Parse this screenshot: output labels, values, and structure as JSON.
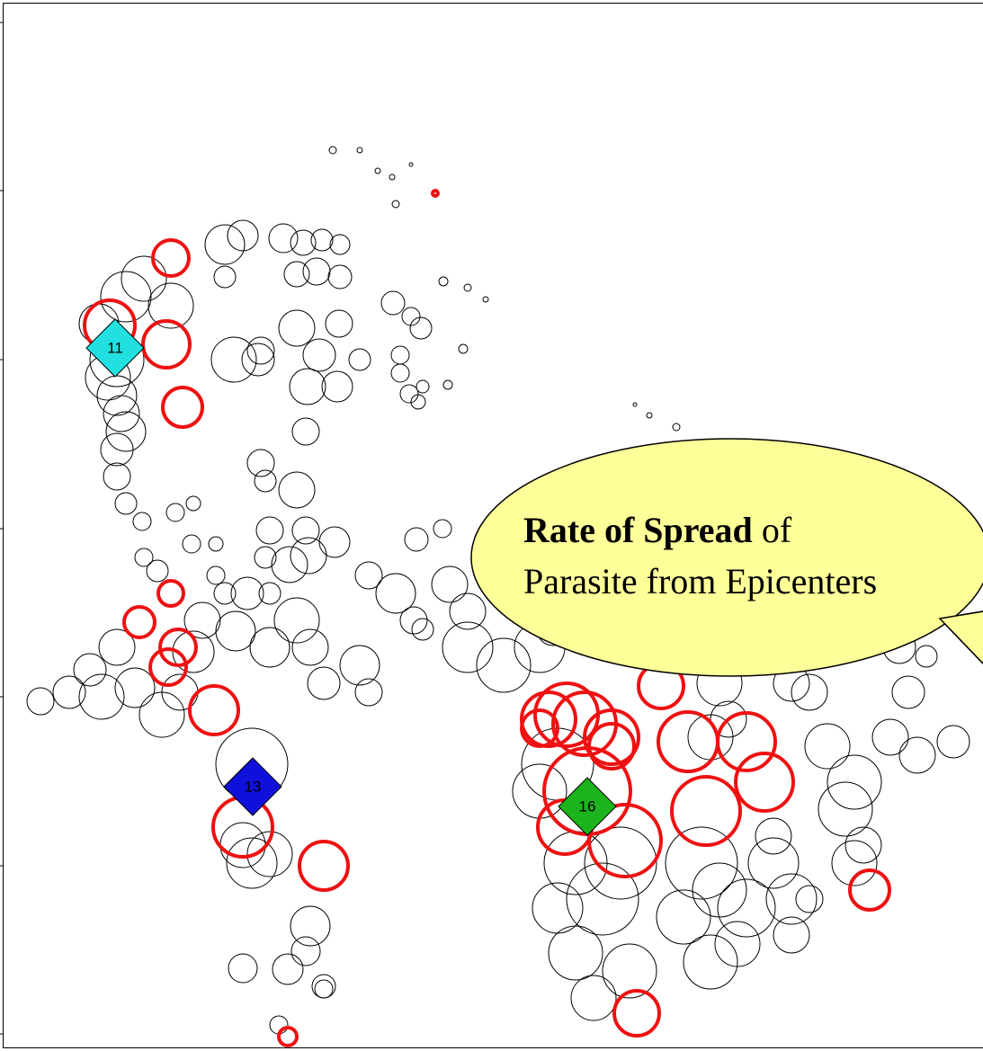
{
  "chart_data": {
    "type": "scatter",
    "xlim": [
      0,
      1093
    ],
    "ylim": [
      1169,
      0
    ],
    "yticks": [
      25,
      212,
      400,
      588,
      775,
      963,
      1150
    ],
    "series": [
      {
        "color": "#000000",
        "x": [
          370,
          400,
          420,
          436,
          457,
          440,
          493,
          520,
          540,
          515,
          498,
          752,
          722,
          706,
          250,
          270,
          315,
          337,
          358,
          378,
          330,
          352,
          378,
          250,
          160,
          140,
          190,
          110,
          130,
          120,
          130,
          135,
          140,
          130,
          130,
          140,
          158,
          160,
          175,
          195,
          215,
          213,
          240,
          250,
          240,
          290,
          295,
          340,
          330,
          300,
          295,
          340,
          372,
          343,
          322,
          275,
          300,
          262,
          225,
          215,
          200,
          180,
          130,
          150,
          100,
          77,
          45,
          113,
          300,
          330,
          345,
          360,
          400,
          410,
          410,
          440,
          460,
          470,
          463,
          492,
          500,
          520,
          520,
          560,
          600,
          615,
          287,
          330,
          377,
          355,
          400,
          342,
          375,
          437,
          457,
          468,
          445,
          445,
          455,
          470,
          465,
          290,
          260,
          280,
          270,
          300,
          280,
          345,
          340,
          270,
          320,
          360,
          360,
          310,
          620,
          600,
          640,
          670,
          690,
          620,
          640,
          660,
          700,
          760,
          780,
          800,
          820,
          790,
          830,
          860,
          880,
          880,
          900,
          800,
          790,
          810,
          900,
          920,
          950,
          940,
          990,
          1020,
          1060,
          1010,
          1000,
          1030,
          910,
          880,
          860,
          950,
          960
        ],
        "y": [
          167,
          167,
          190,
          197,
          183,
          227,
          313,
          320,
          333,
          388,
          428,
          475,
          462,
          450,
          272,
          262,
          265,
          270,
          267,
          272,
          305,
          302,
          308,
          308,
          310,
          330,
          340,
          360,
          400,
          420,
          440,
          460,
          480,
          500,
          530,
          560,
          580,
          620,
          635,
          570,
          560,
          605,
          605,
          660,
          640,
          515,
          535,
          480,
          545,
          590,
          620,
          590,
          603,
          618,
          628,
          660,
          660,
          702,
          690,
          725,
          770,
          795,
          720,
          765,
          745,
          770,
          780,
          775,
          720,
          690,
          720,
          760,
          740,
          770,
          640,
          660,
          690,
          700,
          600,
          588,
          650,
          680,
          720,
          740,
          720,
          700,
          400,
          365,
          360,
          395,
          400,
          430,
          430,
          337,
          352,
          365,
          395,
          415,
          438,
          430,
          447,
          390,
          400,
          850,
          940,
          950,
          960,
          1030,
          1058,
          1077,
          1078,
          1100,
          1097,
          1140,
          850,
          880,
          960,
          1000,
          960,
          1010,
          1060,
          1110,
          1080,
          1020,
          960,
          990,
          1050,
          1070,
          1010,
          960,
          1000,
          1040,
          1000,
          760,
          820,
          800,
          770,
          830,
          870,
          900,
          820,
          840,
          825,
          770,
          720,
          730,
          710,
          760,
          930,
          960,
          940
        ],
        "sizes": [
          4,
          3,
          3,
          3,
          2,
          4,
          5,
          4,
          3,
          5,
          5,
          4,
          3,
          2,
          22,
          17,
          16,
          14,
          12,
          11,
          14,
          15,
          13,
          12,
          25,
          28,
          25,
          22,
          30,
          25,
          22,
          20,
          22,
          18,
          15,
          12,
          10,
          10,
          12,
          10,
          8,
          10,
          8,
          12,
          10,
          15,
          12,
          15,
          20,
          15,
          12,
          15,
          17,
          20,
          20,
          18,
          12,
          22,
          20,
          23,
          20,
          25,
          20,
          22,
          18,
          18,
          15,
          25,
          22,
          25,
          20,
          18,
          22,
          15,
          15,
          22,
          15,
          12,
          13,
          10,
          20,
          20,
          28,
          30,
          28,
          18,
          18,
          20,
          15,
          18,
          12,
          20,
          17,
          13,
          10,
          12,
          10,
          10,
          10,
          7,
          8,
          15,
          25,
          40,
          25,
          25,
          28,
          22,
          16,
          16,
          17,
          10,
          13,
          10,
          40,
          30,
          35,
          40,
          40,
          28,
          30,
          25,
          30,
          30,
          40,
          30,
          25,
          30,
          32,
          28,
          28,
          20,
          15,
          25,
          25,
          20,
          20,
          25,
          30,
          30,
          20,
          20,
          18,
          18,
          18,
          12,
          12,
          20,
          20,
          25,
          20
        ]
      },
      {
        "color": "#ee1111",
        "x": [
          484,
          190,
          122,
          185,
          203,
          190,
          155,
          198,
          187,
          238,
          270,
          360,
          320,
          708,
          967,
          862,
          630,
          610,
          650,
          680,
          735,
          765,
          830,
          850,
          785,
          653,
          628,
          695,
          680,
          600
        ],
        "y": [
          215,
          287,
          362,
          383,
          453,
          660,
          692,
          720,
          742,
          790,
          920,
          963,
          1153,
          1127,
          990,
          725,
          795,
          800,
          805,
          820,
          763,
          825,
          825,
          870,
          902,
          880,
          920,
          935,
          830,
          810
        ],
        "sizes": [
          3,
          20,
          28,
          26,
          22,
          14,
          17,
          20,
          20,
          27,
          33,
          27,
          10,
          25,
          22,
          22,
          35,
          30,
          35,
          30,
          25,
          33,
          32,
          32,
          38,
          48,
          30,
          40,
          25,
          20
        ]
      }
    ],
    "epicenters": {
      "labels": [
        "11",
        "13",
        "16"
      ],
      "x": [
        128,
        281,
        653
      ],
      "y": [
        387,
        875,
        897
      ],
      "colors": [
        "#22e0e0",
        "#1010dd",
        "#1cb41c"
      ]
    },
    "annotation": {
      "bold": "Rate of Spread",
      "rest": "of",
      "line2": "Parasite from Epicenters"
    }
  }
}
